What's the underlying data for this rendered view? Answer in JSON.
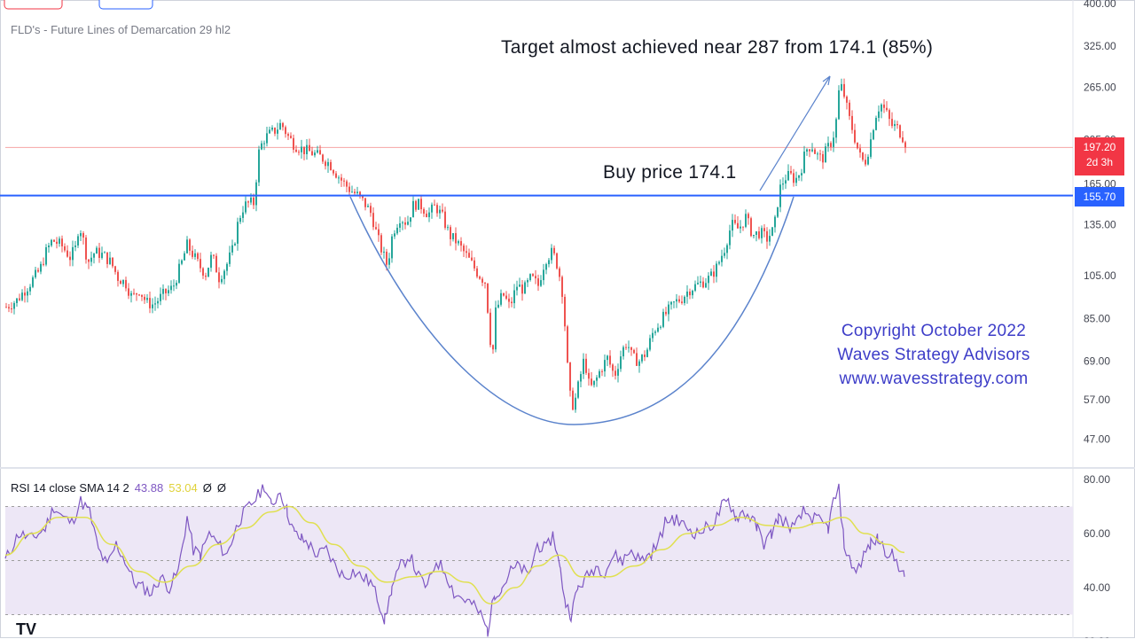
{
  "indicator_label": "FLD's - Future Lines of Demarcation 29 hl2",
  "annotations": {
    "target": "Target almost achieved near 287 from 174.1 (85%)",
    "buy": "Buy price 174.1",
    "copyright": [
      "Copyright October 2022",
      "Waves Strategy Advisors",
      "www.wavesstrategy.com"
    ]
  },
  "price_tags": {
    "last_price": "197.20",
    "countdown": "2d 3h",
    "horizontal_line": "155.70"
  },
  "rsi_header": {
    "label": "RSI 14 close SMA 14 2",
    "rsi_value": "43.88",
    "sma_value": "53.04"
  },
  "colors": {
    "bull": "#26a69a",
    "bear": "#ef5350",
    "level_line": "#2962ff",
    "rsi": "#7e57c2",
    "rsi_ma": "#e0e050",
    "rsi_band": "#ede7f6",
    "annotation_curve": "#5b83cc",
    "copyright_text": "#3d3dc8"
  },
  "chart_data": [
    {
      "type": "candlestick",
      "scale": "log",
      "yticks": [
        47,
        57,
        69,
        85,
        105,
        135,
        165,
        205,
        265,
        325,
        400
      ],
      "ytick_labels": [
        "47.00",
        "57.00",
        "69.00",
        "85.00",
        "105.00",
        "135.00",
        "165.00",
        "205.00",
        "265.00",
        "325.00",
        "400.00"
      ],
      "ylim": [
        43,
        420
      ],
      "level_line": 155.7,
      "last_price": 197.2,
      "buy_price": 174.1,
      "target": 287,
      "close_path": [
        [
          0,
          90
        ],
        [
          12,
          93
        ],
        [
          25,
          100
        ],
        [
          38,
          108
        ],
        [
          45,
          118
        ],
        [
          52,
          125
        ],
        [
          62,
          122
        ],
        [
          72,
          115
        ],
        [
          78,
          120
        ],
        [
          82,
          135
        ],
        [
          85,
          130
        ],
        [
          92,
          112
        ],
        [
          100,
          118
        ],
        [
          110,
          116
        ],
        [
          118,
          112
        ],
        [
          126,
          104
        ],
        [
          135,
          101
        ],
        [
          142,
          94
        ],
        [
          150,
          98
        ],
        [
          158,
          92
        ],
        [
          166,
          91
        ],
        [
          178,
          96
        ],
        [
          188,
          99
        ],
        [
          198,
          112
        ],
        [
          204,
          122
        ],
        [
          210,
          117
        ],
        [
          218,
          110
        ],
        [
          225,
          106
        ],
        [
          232,
          116
        ],
        [
          240,
          104
        ],
        [
          248,
          110
        ],
        [
          256,
          120
        ],
        [
          262,
          138
        ],
        [
          268,
          148
        ],
        [
          274,
          150
        ],
        [
          280,
          150
        ],
        [
          284,
          190
        ],
        [
          290,
          205
        ],
        [
          296,
          210
        ],
        [
          304,
          215
        ],
        [
          310,
          222
        ],
        [
          318,
          208
        ],
        [
          325,
          200
        ],
        [
          335,
          195
        ],
        [
          345,
          192
        ],
        [
          355,
          188
        ],
        [
          365,
          182
        ],
        [
          372,
          174
        ],
        [
          380,
          166
        ],
        [
          388,
          160
        ],
        [
          396,
          156
        ],
        [
          404,
          150
        ],
        [
          412,
          142
        ],
        [
          418,
          128
        ],
        [
          424,
          118
        ],
        [
          430,
          110
        ],
        [
          436,
          130
        ],
        [
          444,
          140
        ],
        [
          452,
          136
        ],
        [
          460,
          150
        ],
        [
          468,
          148
        ],
        [
          476,
          142
        ],
        [
          484,
          148
        ],
        [
          492,
          140
        ],
        [
          500,
          128
        ],
        [
          508,
          124
        ],
        [
          516,
          118
        ],
        [
          524,
          112
        ],
        [
          532,
          106
        ],
        [
          540,
          102
        ],
        [
          544,
          85
        ],
        [
          548,
          68
        ],
        [
          552,
          88
        ],
        [
          560,
          96
        ],
        [
          568,
          90
        ],
        [
          576,
          100
        ],
        [
          584,
          98
        ],
        [
          592,
          104
        ],
        [
          600,
          100
        ],
        [
          608,
          114
        ],
        [
          616,
          118
        ],
        [
          622,
          110
        ],
        [
          628,
          95
        ],
        [
          632,
          70
        ],
        [
          636,
          58
        ],
        [
          640,
          55
        ],
        [
          646,
          62
        ],
        [
          652,
          70
        ],
        [
          658,
          60
        ],
        [
          664,
          62
        ],
        [
          670,
          66
        ],
        [
          678,
          70
        ],
        [
          686,
          64
        ],
        [
          694,
          72
        ],
        [
          700,
          76
        ],
        [
          706,
          70
        ],
        [
          714,
          69
        ],
        [
          722,
          72
        ],
        [
          730,
          80
        ],
        [
          738,
          84
        ],
        [
          746,
          88
        ],
        [
          754,
          92
        ],
        [
          762,
          94
        ],
        [
          770,
          98
        ],
        [
          778,
          100
        ],
        [
          786,
          102
        ],
        [
          794,
          104
        ],
        [
          802,
          110
        ],
        [
          810,
          120
        ],
        [
          818,
          135
        ],
        [
          826,
          132
        ],
        [
          834,
          140
        ],
        [
          842,
          128
        ],
        [
          850,
          130
        ],
        [
          858,
          126
        ],
        [
          866,
          132
        ],
        [
          872,
          160
        ],
        [
          878,
          170
        ],
        [
          884,
          172
        ],
        [
          890,
          168
        ],
        [
          896,
          176
        ],
        [
          902,
          195
        ],
        [
          908,
          200
        ],
        [
          914,
          190
        ],
        [
          920,
          186
        ],
        [
          926,
          196
        ],
        [
          932,
          205
        ],
        [
          936,
          225
        ],
        [
          940,
          270
        ],
        [
          944,
          260
        ],
        [
          950,
          230
        ],
        [
          956,
          210
        ],
        [
          962,
          190
        ],
        [
          968,
          182
        ],
        [
          974,
          200
        ],
        [
          980,
          230
        ],
        [
          986,
          245
        ],
        [
          992,
          235
        ],
        [
          998,
          220
        ],
        [
          1004,
          218
        ],
        [
          1010,
          210
        ],
        [
          1016,
          198
        ]
      ]
    },
    {
      "type": "line",
      "title": "RSI 14 close SMA 14 2",
      "yticks": [
        40,
        60,
        80
      ],
      "ytick_labels": [
        "40.00",
        "60.00",
        "80.00"
      ],
      "ylim": [
        17,
        85
      ],
      "band": [
        30,
        70
      ],
      "midline": 50,
      "series": [
        {
          "values": [
            [
              0,
              50
            ],
            [
              15,
              60
            ],
            [
              30,
              58
            ],
            [
              45,
              62
            ],
            [
              55,
              70
            ],
            [
              65,
              66
            ],
            [
              75,
              64
            ],
            [
              85,
              72
            ],
            [
              95,
              68
            ],
            [
              105,
              54
            ],
            [
              115,
              48
            ],
            [
              125,
              56
            ],
            [
              135,
              50
            ],
            [
              145,
              42
            ],
            [
              155,
              40
            ],
            [
              165,
              38
            ],
            [
              175,
              44
            ],
            [
              185,
              40
            ],
            [
              195,
              46
            ],
            [
              205,
              66
            ],
            [
              212,
              54
            ],
            [
              220,
              52
            ],
            [
              230,
              60
            ],
            [
              240,
              56
            ],
            [
              250,
              52
            ],
            [
              258,
              60
            ],
            [
              266,
              66
            ],
            [
              275,
              70
            ],
            [
              285,
              74
            ],
            [
              292,
              78
            ],
            [
              300,
              70
            ],
            [
              310,
              76
            ],
            [
              318,
              68
            ],
            [
              326,
              60
            ],
            [
              334,
              58
            ],
            [
              342,
              56
            ],
            [
              352,
              52
            ],
            [
              362,
              54
            ],
            [
              372,
              48
            ],
            [
              382,
              44
            ],
            [
              392,
              46
            ],
            [
              402,
              44
            ],
            [
              412,
              42
            ],
            [
              420,
              36
            ],
            [
              428,
              28
            ],
            [
              436,
              40
            ],
            [
              446,
              48
            ],
            [
              456,
              52
            ],
            [
              466,
              44
            ],
            [
              476,
              40
            ],
            [
              486,
              50
            ],
            [
              496,
              46
            ],
            [
              506,
              38
            ],
            [
              516,
              36
            ],
            [
              526,
              34
            ],
            [
              536,
              30
            ],
            [
              544,
              24
            ],
            [
              552,
              38
            ],
            [
              560,
              40
            ],
            [
              570,
              46
            ],
            [
              580,
              48
            ],
            [
              590,
              44
            ],
            [
              600,
              56
            ],
            [
              610,
              54
            ],
            [
              618,
              60
            ],
            [
              626,
              46
            ],
            [
              632,
              34
            ],
            [
              638,
              30
            ],
            [
              646,
              40
            ],
            [
              656,
              44
            ],
            [
              666,
              48
            ],
            [
              676,
              46
            ],
            [
              686,
              52
            ],
            [
              696,
              50
            ],
            [
              706,
              54
            ],
            [
              716,
              50
            ],
            [
              726,
              52
            ],
            [
              736,
              56
            ],
            [
              744,
              64
            ],
            [
              752,
              66
            ],
            [
              760,
              64
            ],
            [
              770,
              62
            ],
            [
              780,
              60
            ],
            [
              790,
              62
            ],
            [
              800,
              64
            ],
            [
              808,
              70
            ],
            [
              816,
              72
            ],
            [
              824,
              66
            ],
            [
              832,
              68
            ],
            [
              840,
              66
            ],
            [
              848,
              62
            ],
            [
              856,
              56
            ],
            [
              864,
              60
            ],
            [
              872,
              66
            ],
            [
              880,
              64
            ],
            [
              890,
              62
            ],
            [
              900,
              68
            ],
            [
              910,
              66
            ],
            [
              920,
              64
            ],
            [
              928,
              62
            ],
            [
              934,
              72
            ],
            [
              940,
              76
            ],
            [
              946,
              56
            ],
            [
              952,
              50
            ],
            [
              960,
              46
            ],
            [
              968,
              52
            ],
            [
              976,
              56
            ],
            [
              984,
              58
            ],
            [
              992,
              54
            ],
            [
              1000,
              52
            ],
            [
              1008,
              48
            ],
            [
              1014,
              44
            ]
          ]
        },
        {
          "values": [
            [
              0,
              52
            ],
            [
              30,
              60
            ],
            [
              60,
              66
            ],
            [
              90,
              66
            ],
            [
              120,
              56
            ],
            [
              150,
              46
            ],
            [
              180,
              42
            ],
            [
              210,
              48
            ],
            [
              240,
              56
            ],
            [
              270,
              62
            ],
            [
              300,
              68
            ],
            [
              320,
              70
            ],
            [
              345,
              64
            ],
            [
              370,
              56
            ],
            [
              400,
              48
            ],
            [
              430,
              42
            ],
            [
              460,
              44
            ],
            [
              490,
              46
            ],
            [
              520,
              42
            ],
            [
              548,
              34
            ],
            [
              575,
              40
            ],
            [
              600,
              48
            ],
            [
              625,
              52
            ],
            [
              650,
              44
            ],
            [
              680,
              44
            ],
            [
              710,
              48
            ],
            [
              740,
              54
            ],
            [
              770,
              60
            ],
            [
              800,
              63
            ],
            [
              830,
              66
            ],
            [
              860,
              63
            ],
            [
              890,
              62
            ],
            [
              920,
              64
            ],
            [
              945,
              66
            ],
            [
              970,
              60
            ],
            [
              995,
              56
            ],
            [
              1014,
              53
            ]
          ]
        }
      ]
    }
  ]
}
